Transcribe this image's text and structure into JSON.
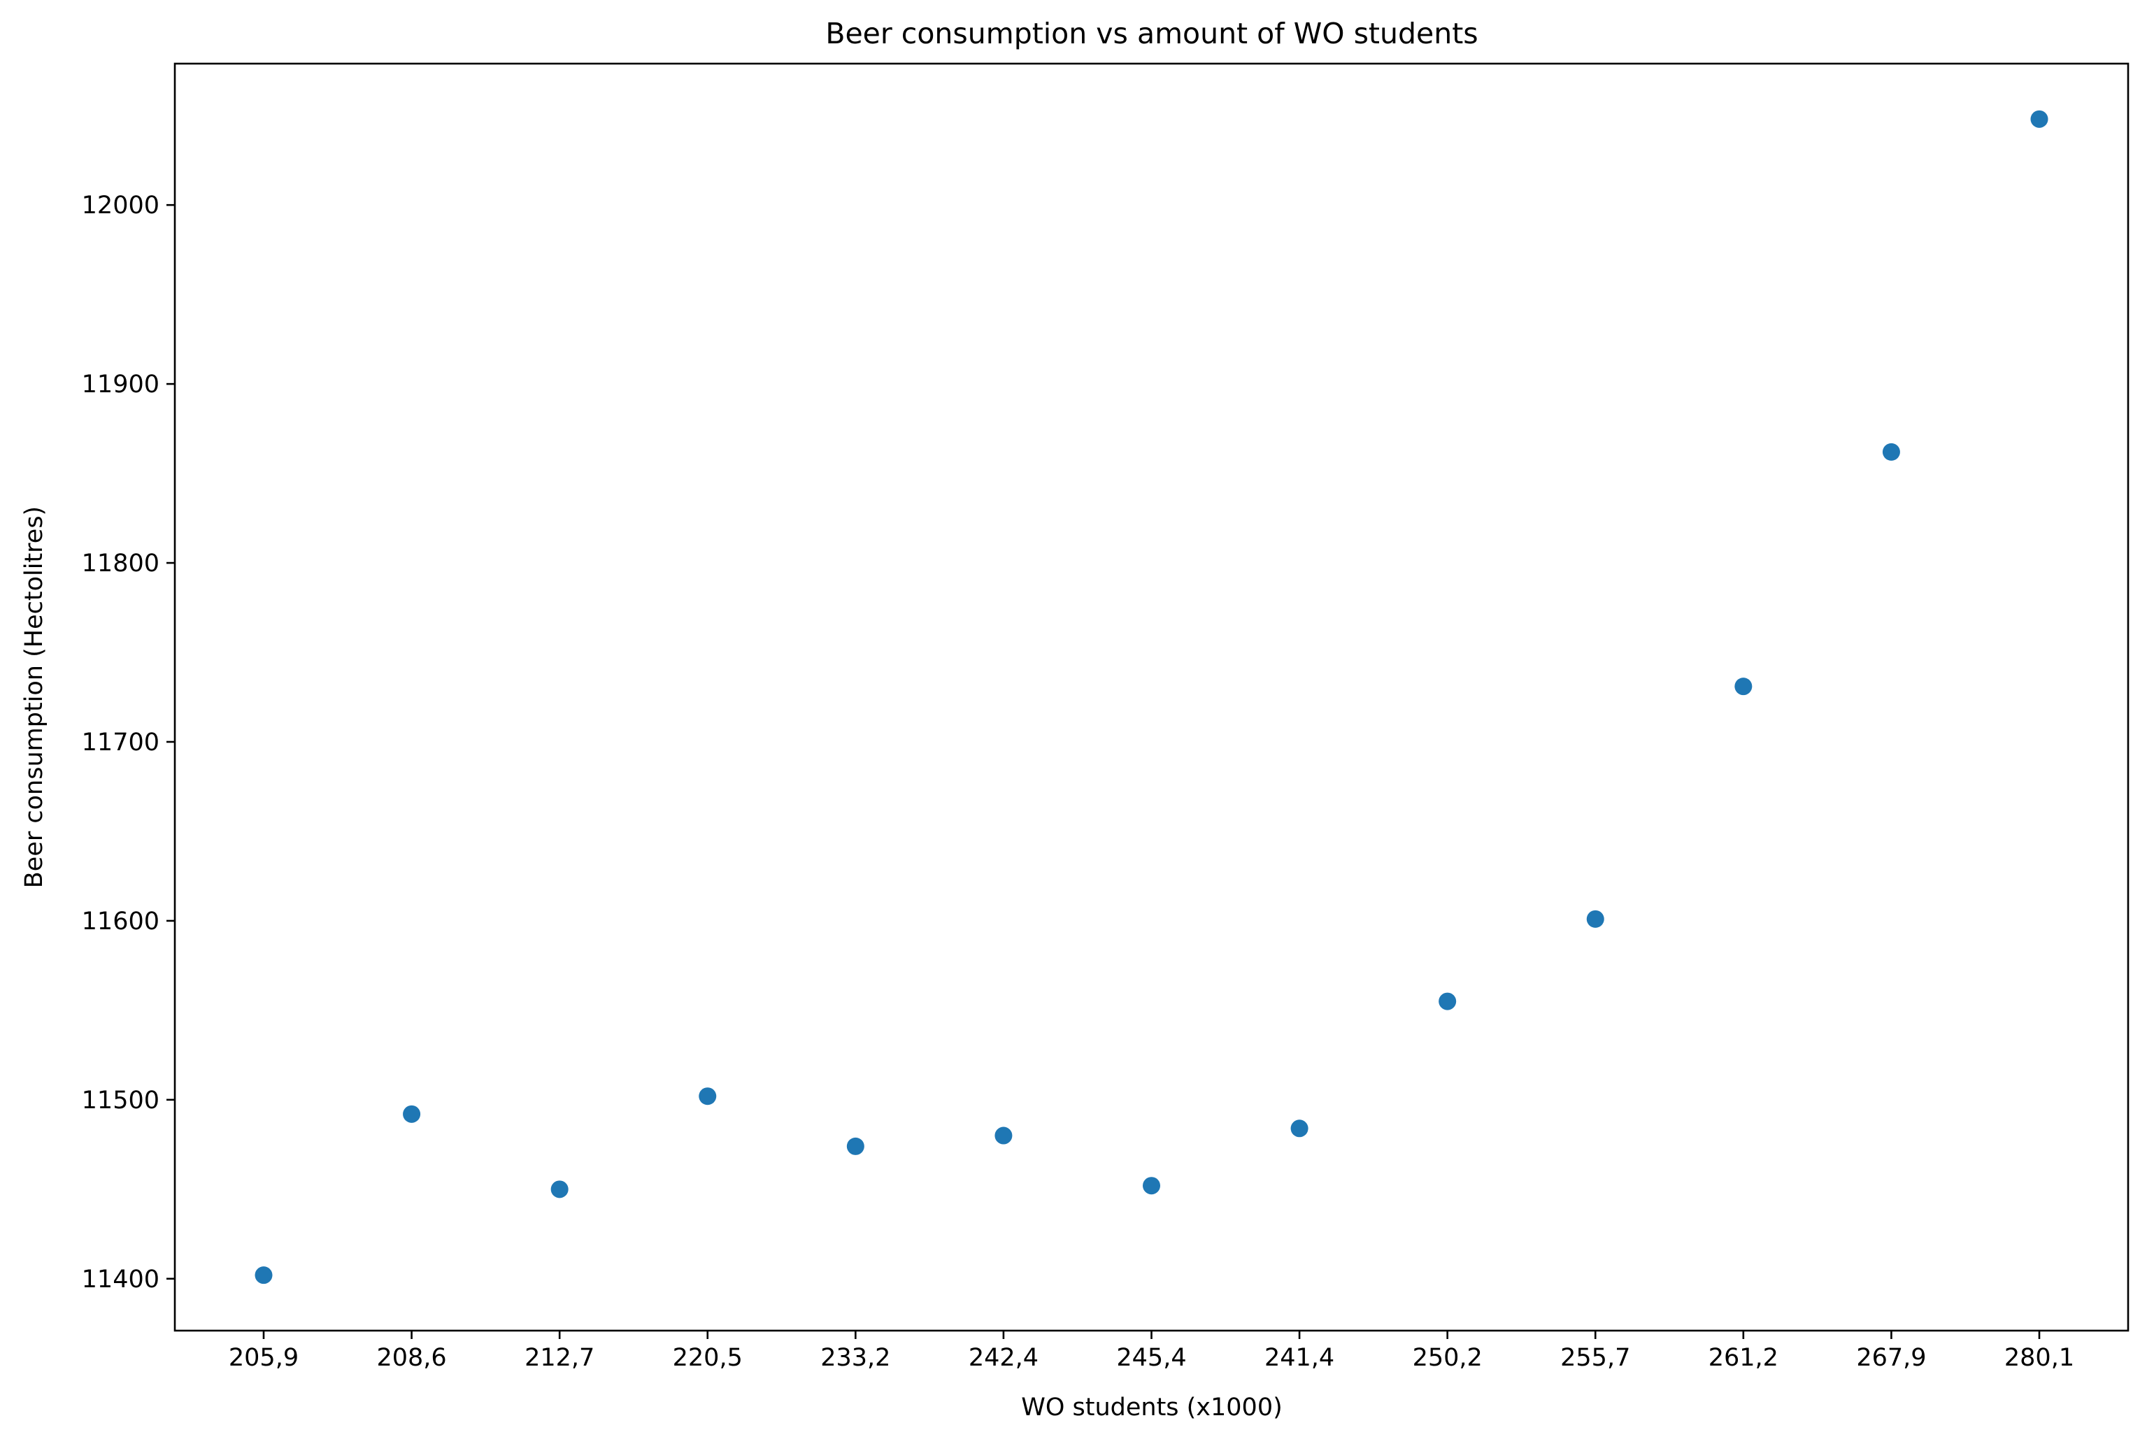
{
  "chart_data": {
    "type": "scatter",
    "title": "Beer consumption vs amount of WO students",
    "xlabel": "WO students (x1000)",
    "ylabel": "Beer consumption (Hectolitres)",
    "categories": [
      "205,9",
      "208,6",
      "212,7",
      "220,5",
      "233,2",
      "242,4",
      "245,4",
      "241,4",
      "250,2",
      "255,7",
      "261,2",
      "267,9",
      "280,1"
    ],
    "series": [
      {
        "values": [
          11402,
          11492,
          11450,
          11502,
          11474,
          11480,
          11452,
          11484,
          11555,
          11601,
          11731,
          11862,
          12048
        ]
      }
    ],
    "yticks": [
      11400,
      11500,
      11600,
      11700,
      11800,
      11900,
      12000
    ],
    "ylim": [
      11371,
      12079
    ],
    "grid": false,
    "legend": "none",
    "marker_color": "#1f77b4"
  }
}
